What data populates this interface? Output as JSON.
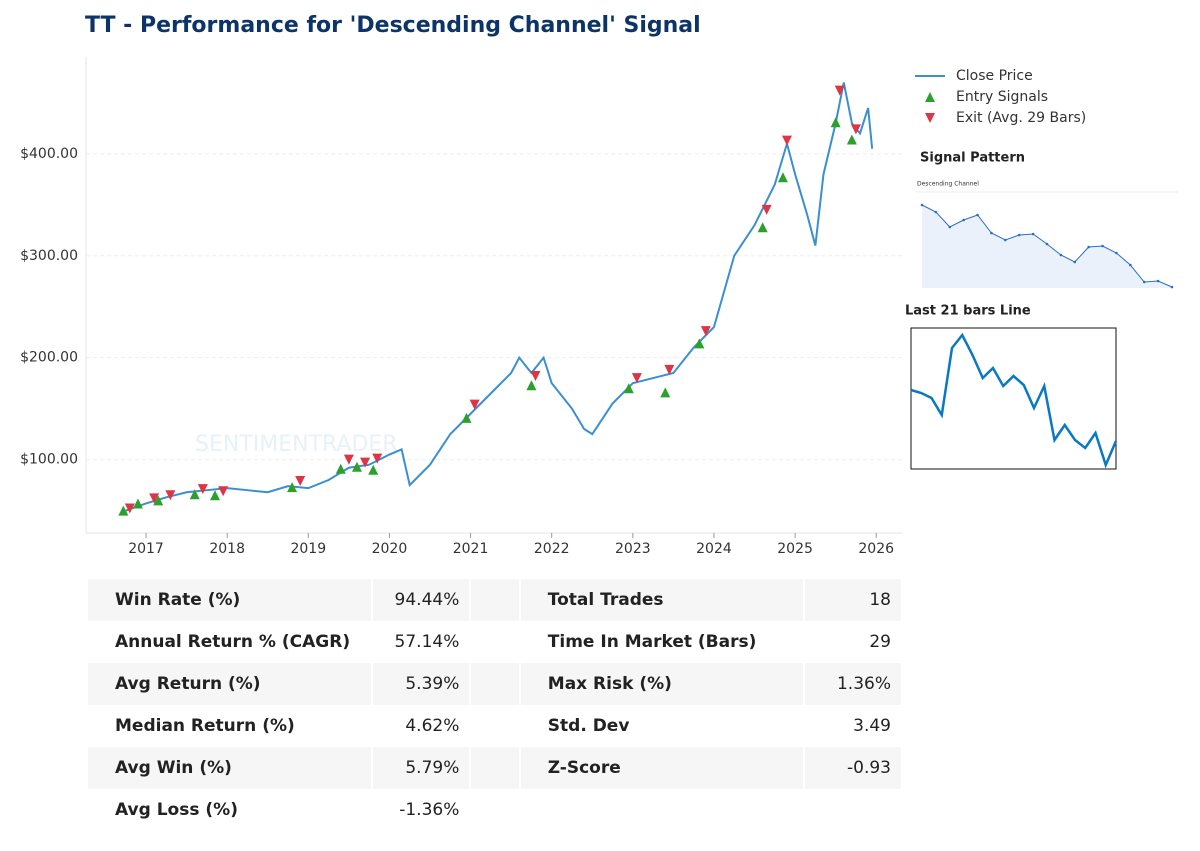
{
  "header": {
    "title": "TT - Performance for 'Descending Channel' Signal"
  },
  "chart_data": [
    {
      "type": "line",
      "xlim": [
        2016.26,
        2026.33
      ],
      "xticks": [
        2017,
        2018,
        2019,
        2020,
        2021,
        2022,
        2023,
        2024,
        2025,
        2026
      ],
      "ylim": [
        28,
        495
      ],
      "yticks": [
        {
          "value": 100,
          "label": "$100.00"
        },
        {
          "value": 200,
          "label": "$200.00"
        },
        {
          "value": 300,
          "label": "$300.00"
        },
        {
          "value": 400,
          "label": "$400.00"
        }
      ],
      "grid": true,
      "legend": "outside-right",
      "watermark": "SENTIMENTRADER",
      "series": [
        {
          "name": "Close Price",
          "color": "#3a8fd0",
          "x": [
            2016.75,
            2017.0,
            2017.25,
            2017.5,
            2017.75,
            2018.0,
            2018.25,
            2018.5,
            2018.75,
            2019.0,
            2019.25,
            2019.5,
            2019.75,
            2020.0,
            2020.15,
            2020.25,
            2020.5,
            2020.75,
            2021.0,
            2021.25,
            2021.5,
            2021.6,
            2021.75,
            2021.9,
            2022.0,
            2022.25,
            2022.4,
            2022.5,
            2022.75,
            2023.0,
            2023.25,
            2023.5,
            2023.75,
            2024.0,
            2024.25,
            2024.5,
            2024.75,
            2024.9,
            2025.0,
            2025.15,
            2025.25,
            2025.35,
            2025.5,
            2025.6,
            2025.7,
            2025.8,
            2025.9,
            2025.95
          ],
          "values": [
            50,
            57,
            63,
            68,
            70,
            72,
            70,
            68,
            74,
            72,
            80,
            92,
            95,
            105,
            110,
            75,
            95,
            125,
            145,
            165,
            185,
            200,
            185,
            200,
            175,
            150,
            130,
            125,
            155,
            175,
            180,
            185,
            210,
            230,
            300,
            330,
            370,
            410,
            380,
            340,
            310,
            380,
            430,
            470,
            430,
            420,
            445,
            405
          ]
        },
        {
          "name": "Entry Signals",
          "color": "#2ca02c",
          "marker": "triangle-up",
          "x": [
            2016.72,
            2016.9,
            2017.15,
            2017.6,
            2017.85,
            2018.8,
            2019.4,
            2019.6,
            2019.8,
            2020.95,
            2021.75,
            2022.95,
            2023.4,
            2023.82,
            2024.6,
            2024.85,
            2025.5,
            2025.7
          ],
          "values": [
            50,
            57,
            60,
            66,
            65,
            73,
            91,
            93,
            90,
            141,
            173,
            170,
            166,
            214,
            328,
            377,
            431,
            414
          ]
        },
        {
          "name": "Exit (Avg. 29 Bars)",
          "color": "#dc3545",
          "marker": "triangle-down",
          "x": [
            2016.8,
            2017.1,
            2017.3,
            2017.7,
            2017.95,
            2018.9,
            2019.5,
            2019.7,
            2019.85,
            2021.05,
            2021.8,
            2023.05,
            2023.45,
            2023.9,
            2024.65,
            2024.9,
            2025.55,
            2025.75
          ],
          "values": [
            52,
            62,
            65,
            71,
            69,
            79,
            100,
            97,
            101,
            154,
            182,
            180,
            188,
            226,
            345,
            413,
            462,
            424
          ]
        }
      ]
    },
    {
      "type": "line",
      "panel_title": "Signal Pattern",
      "title": "Descending Channel",
      "color": "#2a6fc4",
      "values": [
        95,
        88,
        73,
        80,
        85,
        67,
        60,
        65,
        66,
        56,
        45,
        38,
        53,
        54,
        47,
        35,
        18,
        19,
        13
      ]
    },
    {
      "type": "line",
      "panel_title": "Last 21 bars Line",
      "color": "#0a78c2",
      "values": [
        -390,
        -393,
        -398,
        -415,
        -348,
        -335,
        -355,
        -378,
        -368,
        -386,
        -376,
        -385,
        -408,
        -386,
        -440,
        -425,
        -440,
        -448,
        -433,
        -465,
        -441
      ]
    }
  ],
  "table": {
    "rows": [
      [
        "Win Rate (%)",
        "94.44%",
        "Total Trades",
        "18"
      ],
      [
        "Annual Return % (CAGR)",
        "57.14%",
        "Time In Market (Bars)",
        "29"
      ],
      [
        "Avg Return (%)",
        "5.39%",
        "Max Risk (%)",
        "1.36%"
      ],
      [
        "Median Return (%)",
        "4.62%",
        "Std. Dev",
        "3.49"
      ],
      [
        "Avg Win (%)",
        "5.79%",
        "Z-Score",
        "-0.93"
      ],
      [
        "Avg Loss (%)",
        "-1.36%"
      ]
    ]
  }
}
